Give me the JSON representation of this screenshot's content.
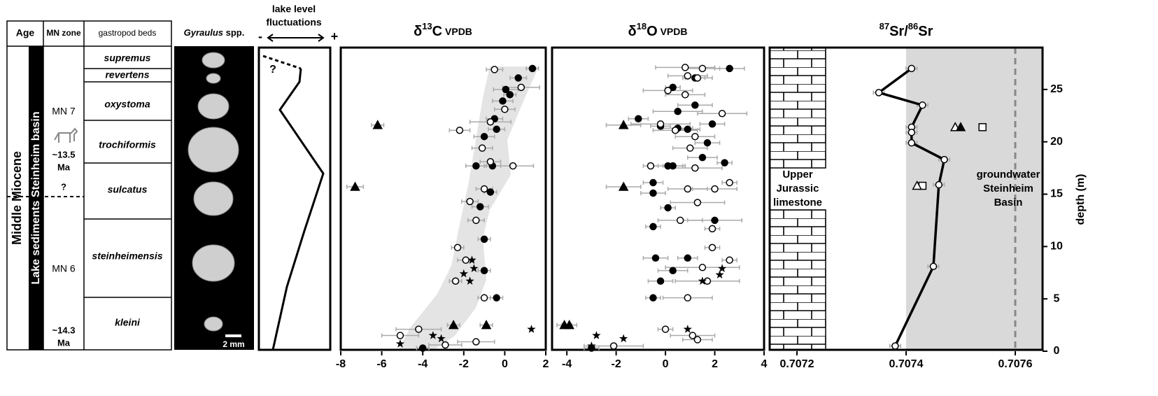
{
  "column": {
    "headers": [
      "Age",
      "MN zone",
      "gastropod beds"
    ],
    "image_header": {
      "genus": "Gyraulus",
      "suffix": "spp."
    },
    "age": "Middle Miocene",
    "unit": "Lake sediments Steinheim basin",
    "mn": [
      "MN 7",
      "~13.5",
      "Ma",
      "?",
      "MN 6",
      "~14.3",
      "Ma"
    ],
    "beds": [
      "supremus",
      "revertens",
      "oxystoma",
      "trochiformis",
      "sulcatus",
      "steinheimensis",
      "kleini"
    ],
    "scale_bar": "2 mm"
  },
  "lake": {
    "title": [
      "lake level",
      "fluctuations"
    ],
    "minus": "-",
    "plus": "+",
    "query": "?"
  },
  "chart_data": [
    {
      "type": "scatter",
      "title": [
        {
          "text": "δ",
          "style": "normal"
        },
        {
          "text": "13",
          "style": "sup"
        },
        {
          "text": "C",
          "style": "normal"
        },
        {
          "text": " VPDB",
          "style": "small"
        }
      ],
      "xlim": [
        -8,
        2
      ],
      "xticks": [
        -8,
        -6,
        -4,
        -2,
        0,
        2
      ],
      "ylim": [
        0,
        29
      ],
      "series": [
        {
          "marker": "circle",
          "fill": "#000000",
          "x": [
            1.35,
            0.66,
            0.05,
            0.25,
            -0.1,
            -0.5,
            -0.4,
            -1.0,
            -1.4,
            -0.6,
            -0.7,
            -1.2,
            -1.0,
            -1.0,
            -0.4,
            -4.0
          ],
          "y": [
            27.0,
            26.1,
            25.0,
            24.5,
            23.9,
            22.2,
            21.2,
            20.5,
            17.7,
            17.7,
            15.2,
            13.8,
            10.7,
            7.7,
            5.1,
            0.3
          ],
          "xerr": [
            0.3,
            0.4,
            0.6,
            0.3,
            0.5,
            0.4,
            0.4,
            0.5,
            0.5,
            0.4,
            0.3,
            0.4,
            0.3,
            0.3,
            0.3,
            0.3
          ]
        },
        {
          "marker": "circle",
          "fill": "#ffffff",
          "x": [
            -0.5,
            0.8,
            0.0,
            -0.7,
            -2.2,
            -1.1,
            -0.7,
            0.4,
            -1.0,
            -1.7,
            -1.4,
            -2.3,
            -1.9,
            -2.4,
            -1.0,
            -4.2,
            -1.4,
            -2.9,
            -5.1
          ],
          "y": [
            26.9,
            25.2,
            23.1,
            21.9,
            21.1,
            19.4,
            18.1,
            17.7,
            15.5,
            14.3,
            12.5,
            9.9,
            8.7,
            6.7,
            5.1,
            2.1,
            0.9,
            0.6,
            1.5
          ],
          "xerr": [
            0.4,
            0.9,
            0.5,
            1.0,
            0.5,
            0.5,
            0.5,
            1.0,
            0.4,
            0.4,
            0.4,
            0.3,
            0.4,
            0.3,
            0.3,
            1.1,
            0.9,
            0.8,
            0.9
          ]
        },
        {
          "marker": "triangle",
          "fill": "#000000",
          "x": [
            -6.2,
            -7.3,
            -2.5,
            -0.9
          ],
          "y": [
            21.6,
            15.7,
            2.5,
            2.5
          ],
          "xerr": [
            0.3,
            0.4,
            0.3,
            0.3
          ]
        },
        {
          "marker": "star",
          "fill": "#000000",
          "x": [
            -1.6,
            -1.5,
            -1.7,
            -2.0,
            1.3,
            -3.5,
            -3.1,
            -5.1
          ],
          "y": [
            8.7,
            7.9,
            6.7,
            7.4,
            2.1,
            1.5,
            1.2,
            0.7
          ]
        }
      ]
    },
    {
      "type": "scatter",
      "title": [
        {
          "text": "δ",
          "style": "normal"
        },
        {
          "text": "18",
          "style": "sup"
        },
        {
          "text": "O",
          "style": "normal"
        },
        {
          "text": " VPDB",
          "style": "small"
        }
      ],
      "xlim": [
        -4.6,
        4
      ],
      "xticks": [
        -4,
        -2,
        0,
        2,
        4
      ],
      "ylim": [
        0,
        29
      ],
      "series": [
        {
          "marker": "circle",
          "fill": "#000000",
          "x": [
            2.6,
            1.2,
            0.3,
            1.2,
            0.5,
            1.9,
            0.5,
            0.9,
            -0.2,
            -1.1,
            1.7,
            2.4,
            1.5,
            0.1,
            0.3,
            -0.5,
            -0.5,
            0.1,
            2.0,
            -0.5,
            -0.4,
            0.9,
            0.3,
            -0.2,
            -0.5,
            -3.0
          ],
          "y": [
            27.0,
            26.1,
            25.2,
            23.5,
            22.9,
            21.7,
            21.3,
            21.2,
            21.5,
            22.2,
            19.9,
            18.0,
            18.5,
            17.7,
            17.7,
            16.1,
            15.1,
            13.7,
            12.5,
            11.9,
            8.9,
            8.9,
            7.7,
            6.7,
            5.1,
            0.3
          ],
          "xerr": [
            0.6,
            0.4,
            0.3,
            0.7,
            1.0,
            0.5,
            0.6,
            0.5,
            0.4,
            0.4,
            0.5,
            0.3,
            0.6,
            0.7,
            0.4,
            0.4,
            0.5,
            0.3,
            1.1,
            0.3,
            0.5,
            0.4,
            0.6,
            0.5,
            0.3,
            0.3
          ]
        },
        {
          "marker": "circle",
          "fill": "#ffffff",
          "x": [
            0.8,
            1.5,
            0.9,
            1.3,
            0.1,
            0.8,
            2.3,
            -0.2,
            0.4,
            1.2,
            1.0,
            -0.6,
            1.2,
            2.6,
            2.0,
            0.9,
            1.3,
            0.6,
            1.9,
            1.9,
            2.6,
            1.5,
            1.7,
            0.9,
            0.0,
            1.1,
            1.3,
            -2.1
          ],
          "y": [
            27.1,
            27.0,
            26.3,
            26.1,
            24.9,
            24.5,
            22.7,
            21.7,
            21.1,
            20.5,
            19.4,
            17.7,
            17.5,
            16.1,
            15.5,
            15.5,
            14.2,
            12.5,
            11.7,
            9.9,
            8.7,
            8.0,
            6.7,
            5.1,
            2.1,
            1.5,
            1.1,
            0.5
          ],
          "xerr": [
            1.2,
            0.7,
            0.8,
            0.6,
            1.0,
            0.8,
            1.0,
            1.2,
            0.9,
            0.8,
            0.7,
            0.3,
            1.1,
            0.3,
            0.9,
            0.8,
            1.1,
            0.9,
            0.3,
            0.3,
            0.3,
            1.5,
            1.3,
            1.0,
            0.3,
            0.9,
            0.6,
            1.2
          ]
        },
        {
          "marker": "triangle",
          "fill": "#000000",
          "x": [
            -1.7,
            -1.7,
            -4.1,
            -3.9
          ],
          "y": [
            21.6,
            15.7,
            2.5,
            2.5
          ],
          "xerr": [
            0.7,
            0.7,
            0.3,
            0.3
          ]
        },
        {
          "marker": "star",
          "fill": "#000000",
          "x": [
            2.3,
            2.2,
            1.5,
            0.9,
            -1.7,
            -2.8,
            -3.0
          ],
          "y": [
            7.9,
            7.3,
            6.7,
            2.1,
            1.2,
            1.5,
            0.5
          ]
        }
      ]
    },
    {
      "type": "line",
      "title": [
        {
          "text": "87",
          "style": "sup"
        },
        {
          "text": "Sr/",
          "style": "normal"
        },
        {
          "text": "86",
          "style": "sup"
        },
        {
          "text": "Sr",
          "style": "normal"
        }
      ],
      "xlim": [
        0.70715,
        0.70765
      ],
      "xticks": [
        0.7072,
        0.7074,
        0.7076
      ],
      "ylim": [
        0,
        29
      ],
      "yticks": [
        0,
        5,
        10,
        15,
        20,
        25
      ],
      "ylabel": "depth (m)",
      "shade_from": 0.7074,
      "reference_line": {
        "value": 0.7076,
        "label": [
          "groundwater",
          "Steinheim",
          "Basin"
        ]
      },
      "limestone_label": [
        "Upper",
        "Jurassic",
        "limestone"
      ],
      "series": [
        {
          "marker": "circle",
          "fill": "#ffffff",
          "connect": true,
          "x": [
            0.70741,
            0.70735,
            0.70743,
            0.70741,
            0.70741,
            0.70741,
            0.70747,
            0.70746,
            0.70745,
            0.70738
          ],
          "y": [
            27.0,
            24.7,
            23.5,
            21.4,
            20.9,
            19.9,
            18.3,
            15.9,
            8.1,
            0.5
          ],
          "xerr": [
            1e-05,
            1e-05,
            1e-05,
            1e-05,
            1e-05,
            1e-05,
            1e-05,
            1e-05,
            1e-05,
            1e-05
          ]
        },
        {
          "marker": "square",
          "fill": "#ffffff",
          "x": [
            0.70754,
            0.70743
          ],
          "y": [
            21.4,
            15.8
          ]
        },
        {
          "marker": "triangle",
          "fill": "#ffffff",
          "x": [
            0.70749,
            0.70742
          ],
          "y": [
            21.4,
            15.8
          ]
        },
        {
          "marker": "triangle",
          "fill": "#000000",
          "x": [
            0.7075
          ],
          "y": [
            21.4
          ]
        }
      ]
    }
  ]
}
